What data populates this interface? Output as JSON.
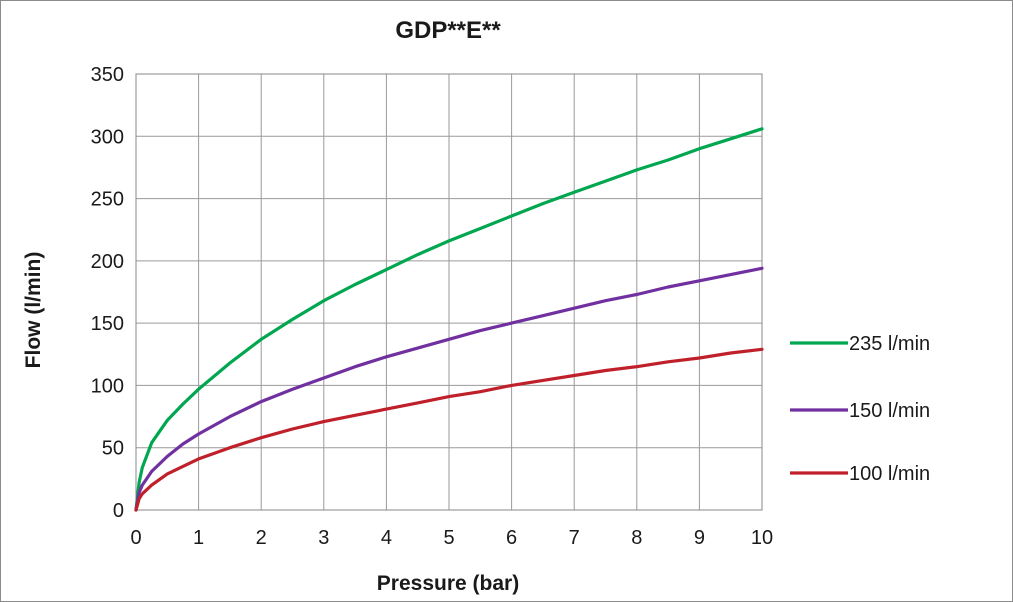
{
  "chart_data": {
    "type": "line",
    "title": "GDP**E**",
    "xlabel": "Pressure (bar)",
    "ylabel": "Flow (l/min)",
    "xlim": [
      0,
      10
    ],
    "ylim": [
      0,
      350
    ],
    "x_ticks": [
      0,
      1,
      2,
      3,
      4,
      5,
      6,
      7,
      8,
      9,
      10
    ],
    "y_ticks": [
      0,
      50,
      100,
      150,
      200,
      250,
      300,
      350
    ],
    "grid": true,
    "legend_position": "right",
    "x": [
      0,
      0.05,
      0.1,
      0.25,
      0.5,
      0.75,
      1,
      1.5,
      2,
      2.5,
      3,
      3.5,
      4,
      4.5,
      5,
      5.5,
      6,
      6.5,
      7,
      7.5,
      8,
      8.5,
      9,
      9.5,
      10
    ],
    "series": [
      {
        "name": "235 l/min",
        "color": "#00a650",
        "values": [
          0,
          22,
          34,
          54,
          72,
          85,
          97,
          118,
          137,
          153,
          168,
          181,
          193,
          205,
          216,
          226,
          236,
          246,
          255,
          264,
          273,
          281,
          290,
          298,
          306
        ]
      },
      {
        "name": "150 l/min",
        "color": "#7030a0",
        "values": [
          0,
          14,
          20,
          31,
          43,
          53,
          61,
          75,
          87,
          97,
          106,
          115,
          123,
          130,
          137,
          144,
          150,
          156,
          162,
          168,
          173,
          179,
          184,
          189,
          194
        ]
      },
      {
        "name": "100 l/min",
        "color": "#c0202a",
        "values": [
          0,
          9,
          13,
          20,
          29,
          35,
          41,
          50,
          58,
          65,
          71,
          76,
          81,
          86,
          91,
          95,
          100,
          104,
          108,
          112,
          115,
          119,
          122,
          126,
          129
        ]
      }
    ]
  }
}
